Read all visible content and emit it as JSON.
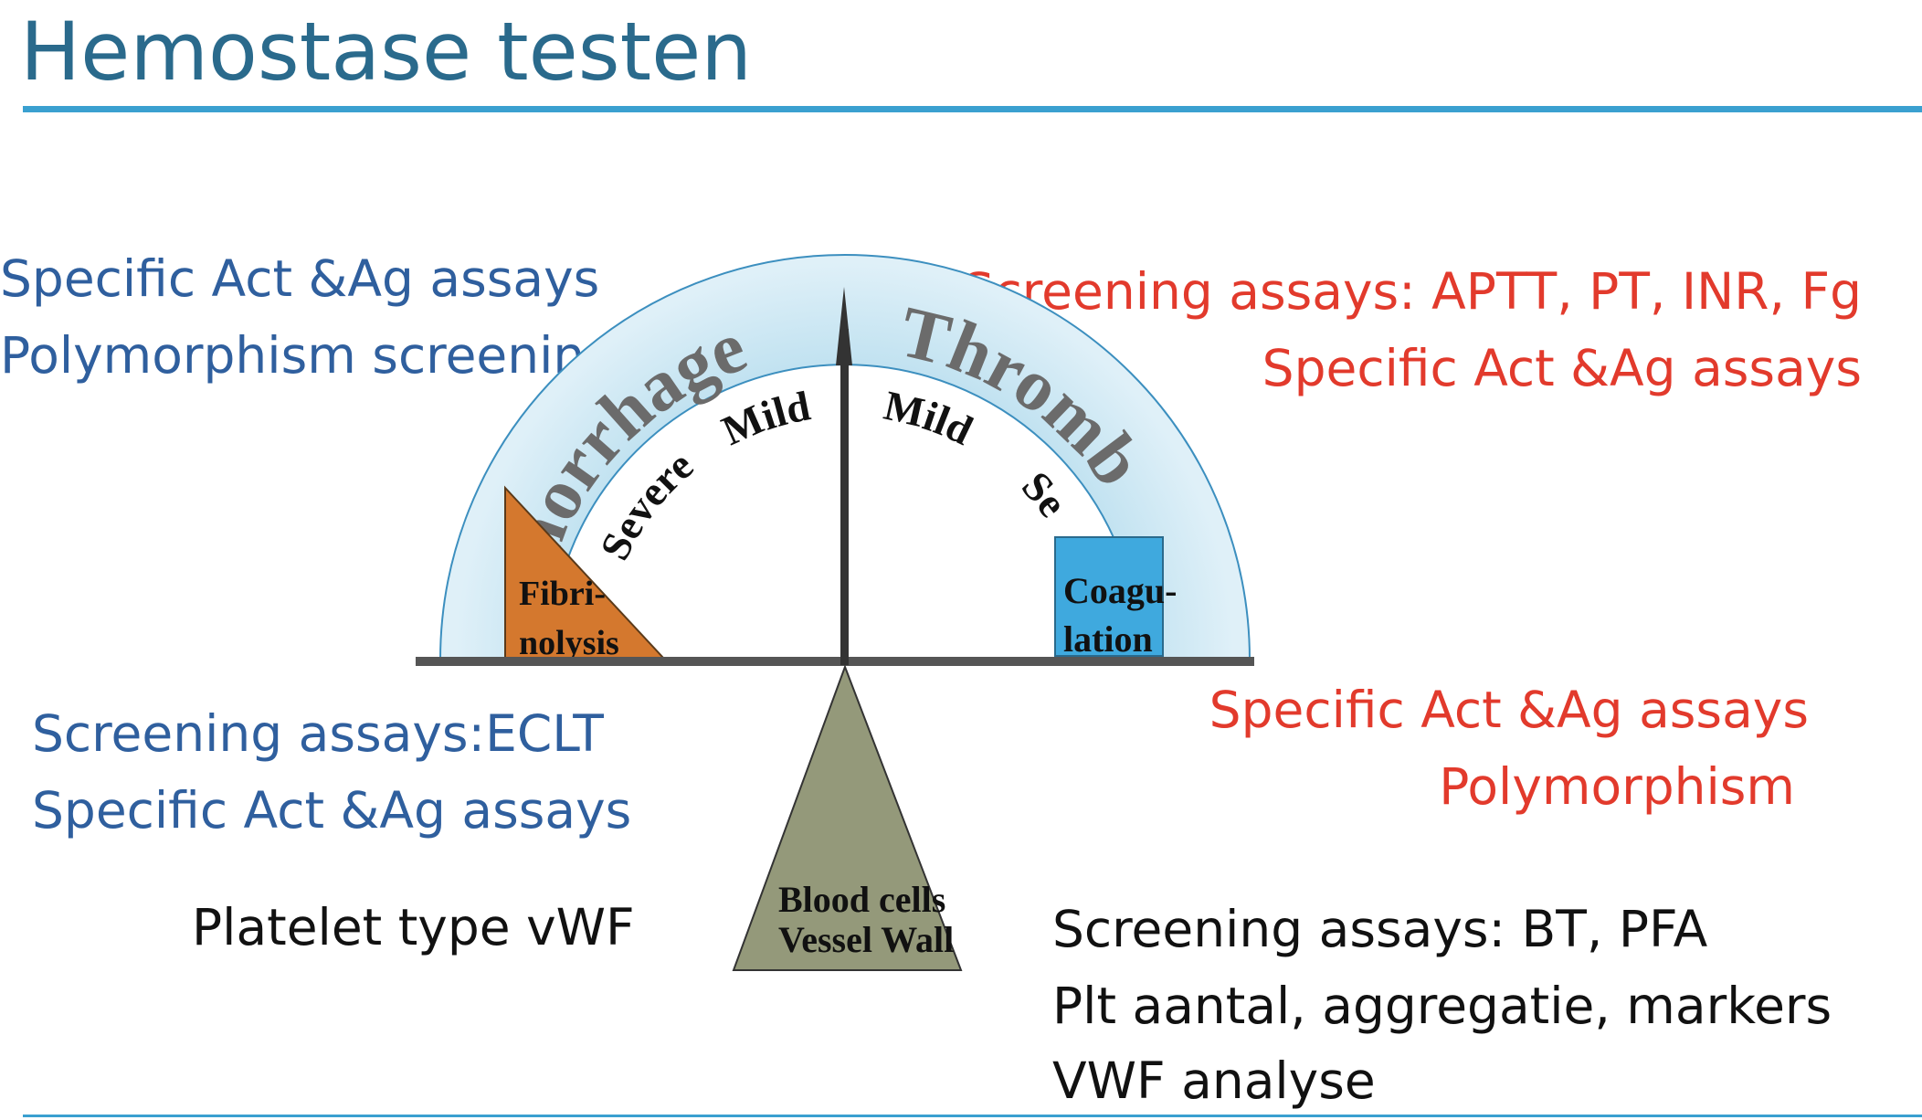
{
  "title": "Hemostase testen",
  "left_top": {
    "line1": "Specific Act &Ag assays",
    "line2": "Polymorphism screening"
  },
  "right_top": {
    "line1": "Screening assays: APTT, PT, INR, Fg",
    "line2": "Specific Act &Ag assays"
  },
  "left_bottom": {
    "line1": "Screening assays:ECLT",
    "line2": "Specific Act &Ag assays"
  },
  "right_bottom": {
    "line1": "Specific Act &Ag assays",
    "line2": "Polymorphism"
  },
  "platelet": {
    "left_label": "Platelet type vWF",
    "line1": "Screening assays: BT, PFA",
    "line2": "Plt aantal, aggregatie, markers",
    "line3": "VWF analyse"
  },
  "balance": {
    "hemorrhage_word": "morrhage",
    "thrombosis_word": "Thromb",
    "severe_left": "Severe",
    "mild_left": "Mild",
    "mild_right": "Mild",
    "severe_right": "Se",
    "fibrinolysis_line1": "Fibri-",
    "fibrinolysis_line2": "nolysis",
    "coagulation_line1": "Coagu-",
    "coagulation_line2": "lation",
    "fulcrum_line1": "Blood cells",
    "fulcrum_line2": "Vessel Wall"
  },
  "colors": {
    "title": "#2a6a8c",
    "rule": "#3aa0d0",
    "blue_text": "#2f5f9e",
    "red_text": "#e23a2c",
    "arc_fill": "#c9e6f2",
    "fibrinolysis_fill": "#d4782e",
    "coagulation_fill": "#3fa9de",
    "fulcrum_fill": "#94997a"
  }
}
